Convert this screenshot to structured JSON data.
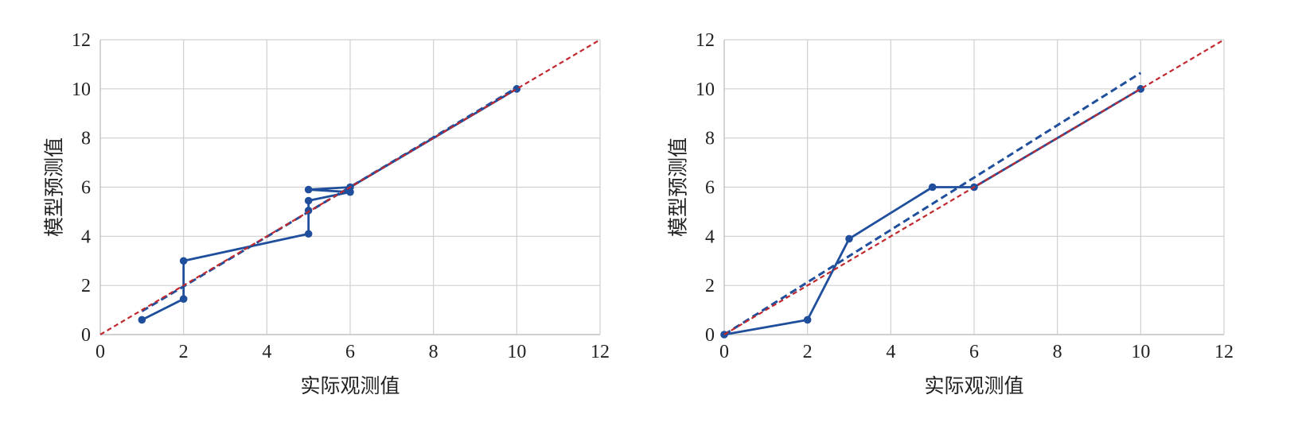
{
  "chart_data": [
    {
      "type": "line",
      "xlabel": "实际观测值",
      "ylabel": "模型预测值",
      "xlim": [
        0,
        12
      ],
      "ylim": [
        0,
        12
      ],
      "xticks": [
        "0",
        "2",
        "4",
        "6",
        "8",
        "10",
        "12"
      ],
      "yticks": [
        "0",
        "2",
        "4",
        "6",
        "8",
        "10",
        "12"
      ],
      "grid": true,
      "series": [
        {
          "style": "solid-markers",
          "color": "#1f4e9c",
          "points": [
            [
              1,
              0.6
            ],
            [
              2,
              1.45
            ],
            [
              2,
              3.0
            ],
            [
              5,
              4.1
            ],
            [
              5,
              5.05
            ],
            [
              5,
              5.45
            ],
            [
              6,
              5.8
            ],
            [
              5,
              5.9
            ],
            [
              6,
              6.0
            ],
            [
              10,
              10.0
            ]
          ]
        },
        {
          "style": "dashed-fit",
          "color": "#1f4e9c",
          "points": [
            [
              1,
              0.95
            ],
            [
              10,
              10.05
            ]
          ]
        },
        {
          "style": "dashed-reference",
          "color": "#c0282e",
          "points": [
            [
              0,
              0
            ],
            [
              12,
              12
            ]
          ]
        }
      ]
    },
    {
      "type": "line",
      "xlabel": "实际观测值",
      "ylabel": "模型预测值",
      "xlim": [
        0,
        12
      ],
      "ylim": [
        0,
        12
      ],
      "xticks": [
        "0",
        "2",
        "4",
        "6",
        "8",
        "10",
        "12"
      ],
      "yticks": [
        "0",
        "2",
        "4",
        "6",
        "8",
        "10",
        "12"
      ],
      "grid": true,
      "series": [
        {
          "style": "solid-markers",
          "color": "#1f4e9c",
          "points": [
            [
              0,
              0
            ],
            [
              2,
              0.6
            ],
            [
              3,
              3.9
            ],
            [
              5,
              6.0
            ],
            [
              6,
              6.0
            ],
            [
              10,
              10.0
            ]
          ]
        },
        {
          "style": "dashed-fit",
          "color": "#1f4e9c",
          "points": [
            [
              0,
              0
            ],
            [
              10,
              10.65
            ]
          ]
        },
        {
          "style": "dashed-reference",
          "color": "#c0282e",
          "points": [
            [
              0,
              0
            ],
            [
              12,
              12
            ]
          ]
        }
      ]
    }
  ]
}
